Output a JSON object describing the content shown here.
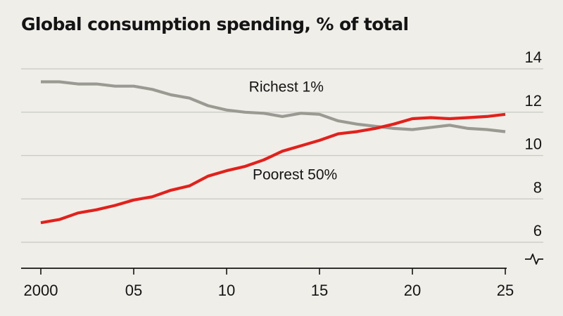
{
  "title": "Global consumption spending, % of total",
  "chart_data": {
    "type": "line",
    "title": "Global consumption spending, % of total",
    "xlabel": "",
    "ylabel": "",
    "xlim": [
      2000,
      2025
    ],
    "ylim": [
      5,
      14
    ],
    "y_ticks": [
      6,
      8,
      10,
      12,
      14
    ],
    "y_tick_labels": [
      "6",
      "8",
      "10",
      "12",
      "14"
    ],
    "x_ticks": [
      2000,
      2005,
      2010,
      2015,
      2020,
      2025
    ],
    "x_tick_labels": [
      "2000",
      "05",
      "10",
      "15",
      "20",
      "25"
    ],
    "axis_break": true,
    "grid": true,
    "series": [
      {
        "name": "Richest 1%",
        "color": "#9a9a93",
        "x": [
          2000,
          2001,
          2002,
          2003,
          2004,
          2005,
          2006,
          2007,
          2008,
          2009,
          2010,
          2011,
          2012,
          2013,
          2014,
          2015,
          2016,
          2017,
          2018,
          2019,
          2020,
          2021,
          2022,
          2023,
          2024,
          2025
        ],
        "values": [
          13.4,
          13.4,
          13.3,
          13.3,
          13.2,
          13.2,
          13.05,
          12.8,
          12.65,
          12.3,
          12.1,
          12.0,
          11.95,
          11.8,
          11.95,
          11.9,
          11.6,
          11.45,
          11.35,
          11.25,
          11.2,
          11.3,
          11.4,
          11.25,
          11.2,
          11.1
        ]
      },
      {
        "name": "Poorest 50%",
        "color": "#e3201b",
        "x": [
          2000,
          2001,
          2002,
          2003,
          2004,
          2005,
          2006,
          2007,
          2008,
          2009,
          2010,
          2011,
          2012,
          2013,
          2014,
          2015,
          2016,
          2017,
          2018,
          2019,
          2020,
          2021,
          2022,
          2023,
          2024,
          2025
        ],
        "values": [
          6.9,
          7.05,
          7.35,
          7.5,
          7.7,
          7.95,
          8.1,
          8.4,
          8.6,
          9.05,
          9.3,
          9.5,
          9.8,
          10.2,
          10.45,
          10.7,
          11.0,
          11.1,
          11.25,
          11.45,
          11.7,
          11.75,
          11.7,
          11.75,
          11.8,
          11.9
        ]
      }
    ],
    "annotations": [
      {
        "text": "Richest 1%",
        "x": 2011.2,
        "y": 12.95
      },
      {
        "text": "Poorest 50%",
        "x": 2011.4,
        "y": 8.9
      }
    ]
  }
}
